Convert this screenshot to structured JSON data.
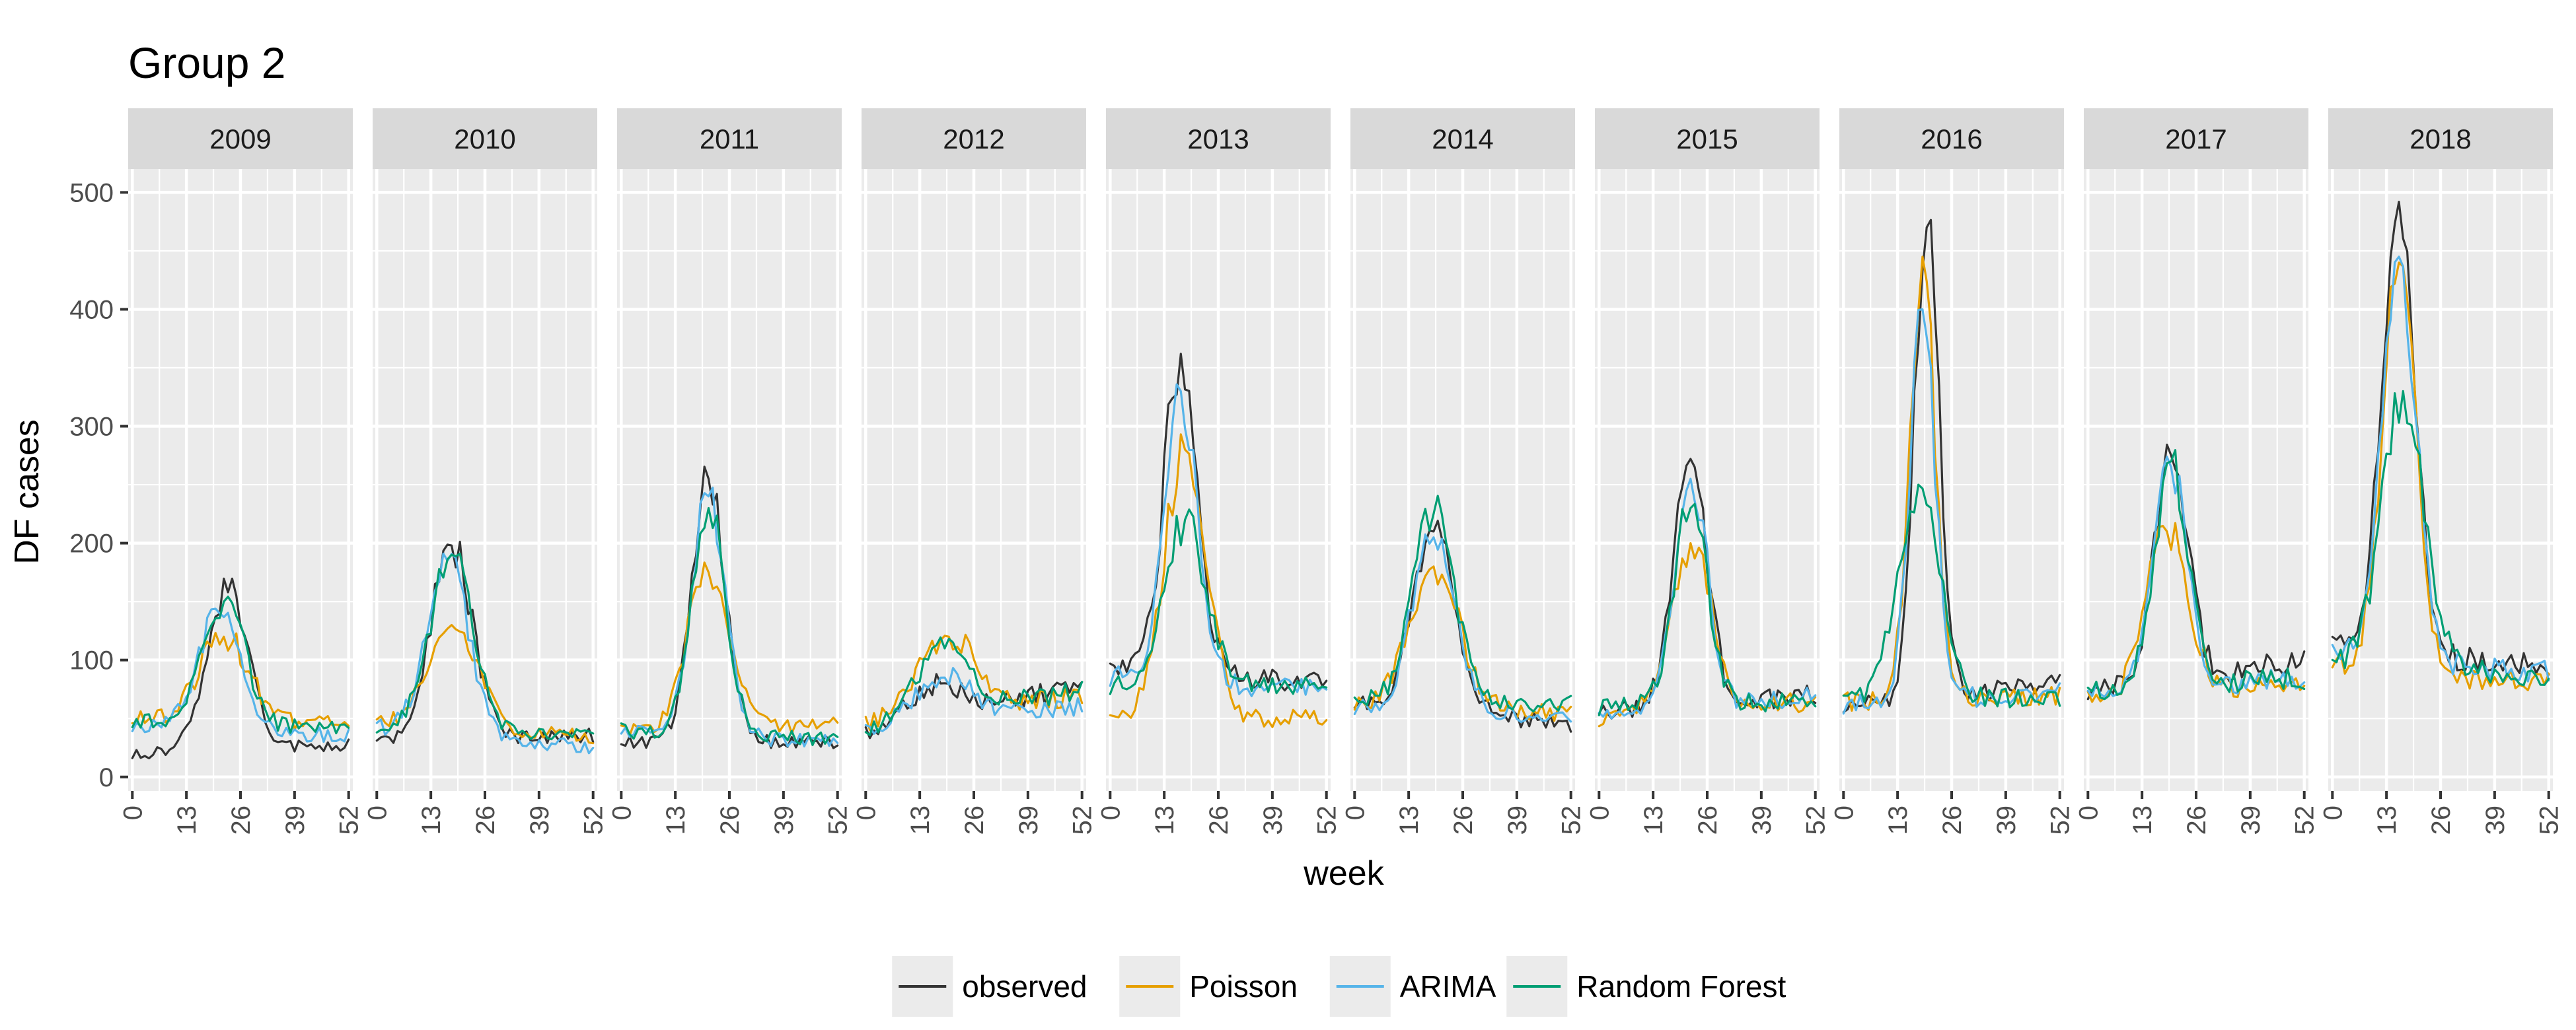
{
  "chart_data": {
    "type": "line",
    "title": "Group 2",
    "xlabel": "week",
    "ylabel": "DF cases",
    "xlim": [
      -1,
      53
    ],
    "ylim": [
      -12,
      520
    ],
    "x_ticks": [
      "0",
      "13",
      "26",
      "39",
      "52"
    ],
    "y_ticks": [
      "0",
      "100",
      "200",
      "300",
      "400",
      "500"
    ],
    "panels": [
      "2009",
      "2010",
      "2011",
      "2012",
      "2013",
      "2014",
      "2015",
      "2016",
      "2017",
      "2018"
    ],
    "legend": {
      "position": "bottom",
      "entries": [
        {
          "name": "observed",
          "color": "#333333"
        },
        {
          "name": "Poisson",
          "color": "#E69F00"
        },
        {
          "name": "ARIMA",
          "color": "#56B4E9"
        },
        {
          "name": "Random Forest",
          "color": "#009E73"
        }
      ]
    },
    "series_profiles": {
      "2009": {
        "observed": {
          "base_start": 20,
          "base_end": 28,
          "peak": 158,
          "peak_week": 23,
          "width": 5
        },
        "Poisson": {
          "base_start": 50,
          "base_end": 45,
          "peak": 120,
          "peak_week": 22,
          "width": 6
        },
        "ARIMA": {
          "base_start": 45,
          "base_end": 35,
          "peak": 140,
          "peak_week": 21,
          "width": 5
        },
        "Random Forest": {
          "base_start": 48,
          "base_end": 40,
          "peak": 150,
          "peak_week": 22,
          "width": 5
        }
      },
      "2010": {
        "observed": {
          "base_start": 32,
          "base_end": 35,
          "peak": 198,
          "peak_week": 18,
          "width": 5
        },
        "Poisson": {
          "base_start": 45,
          "base_end": 35,
          "peak": 130,
          "peak_week": 18,
          "width": 6
        },
        "ARIMA": {
          "base_start": 42,
          "base_end": 25,
          "peak": 185,
          "peak_week": 17,
          "width": 5
        },
        "Random Forest": {
          "base_start": 45,
          "base_end": 35,
          "peak": 190,
          "peak_week": 18,
          "width": 5
        }
      },
      "2011": {
        "observed": {
          "base_start": 30,
          "base_end": 30,
          "peak": 255,
          "peak_week": 21,
          "width": 4
        },
        "Poisson": {
          "base_start": 40,
          "base_end": 45,
          "peak": 175,
          "peak_week": 21,
          "width": 5
        },
        "ARIMA": {
          "base_start": 38,
          "base_end": 30,
          "peak": 240,
          "peak_week": 21,
          "width": 4
        },
        "Random Forest": {
          "base_start": 40,
          "base_end": 32,
          "peak": 230,
          "peak_week": 21,
          "width": 4
        }
      },
      "2012": {
        "observed": {
          "base_start": 35,
          "base_end": 80,
          "peak": 80,
          "peak_week": 18,
          "width": 7
        },
        "Poisson": {
          "base_start": 45,
          "base_end": 70,
          "peak": 120,
          "peak_week": 20,
          "width": 7
        },
        "ARIMA": {
          "base_start": 40,
          "base_end": 60,
          "peak": 85,
          "peak_week": 19,
          "width": 7
        },
        "Random Forest": {
          "base_start": 38,
          "base_end": 75,
          "peak": 110,
          "peak_week": 19,
          "width": 7
        }
      },
      "2013": {
        "observed": {
          "base_start": 90,
          "base_end": 80,
          "peak": 362,
          "peak_week": 17,
          "width": 4
        },
        "Poisson": {
          "base_start": 50,
          "base_end": 50,
          "peak": 280,
          "peak_week": 18,
          "width": 5
        },
        "ARIMA": {
          "base_start": 85,
          "base_end": 75,
          "peak": 330,
          "peak_week": 17,
          "width": 4
        },
        "Random Forest": {
          "base_start": 80,
          "base_end": 80,
          "peak": 220,
          "peak_week": 18,
          "width": 5
        }
      },
      "2014": {
        "observed": {
          "base_start": 65,
          "base_end": 45,
          "peak": 210,
          "peak_week": 19,
          "width": 5
        },
        "Poisson": {
          "base_start": 60,
          "base_end": 55,
          "peak": 180,
          "peak_week": 19,
          "width": 6
        },
        "ARIMA": {
          "base_start": 62,
          "base_end": 50,
          "peak": 205,
          "peak_week": 19,
          "width": 5
        },
        "Random Forest": {
          "base_start": 65,
          "base_end": 62,
          "peak": 225,
          "peak_week": 19,
          "width": 5
        }
      },
      "2015": {
        "observed": {
          "base_start": 55,
          "base_end": 70,
          "peak": 272,
          "peak_week": 22,
          "width": 4
        },
        "Poisson": {
          "base_start": 50,
          "base_end": 65,
          "peak": 200,
          "peak_week": 22,
          "width": 5
        },
        "ARIMA": {
          "base_start": 55,
          "base_end": 68,
          "peak": 255,
          "peak_week": 22,
          "width": 4
        },
        "Random Forest": {
          "base_start": 60,
          "base_end": 65,
          "peak": 230,
          "peak_week": 22,
          "width": 4
        }
      },
      "2016": {
        "observed": {
          "base_start": 60,
          "base_end": 80,
          "peak": 470,
          "peak_week": 20,
          "width": 3
        },
        "Poisson": {
          "base_start": 65,
          "base_end": 70,
          "peak": 445,
          "peak_week": 19,
          "width": 3
        },
        "ARIMA": {
          "base_start": 62,
          "base_end": 72,
          "peak": 400,
          "peak_week": 19,
          "width": 3
        },
        "Random Forest": {
          "base_start": 65,
          "base_end": 68,
          "peak": 250,
          "peak_week": 18,
          "width": 5
        }
      },
      "2017": {
        "observed": {
          "base_start": 75,
          "base_end": 100,
          "peak": 275,
          "peak_week": 20,
          "width": 4
        },
        "Poisson": {
          "base_start": 65,
          "base_end": 80,
          "peak": 210,
          "peak_week": 19,
          "width": 5
        },
        "ARIMA": {
          "base_start": 72,
          "base_end": 85,
          "peak": 265,
          "peak_week": 20,
          "width": 4
        },
        "Random Forest": {
          "base_start": 75,
          "base_end": 85,
          "peak": 270,
          "peak_week": 20,
          "width": 4
        }
      },
      "2018": {
        "observed": {
          "base_start": 110,
          "base_end": 95,
          "peak": 492,
          "peak_week": 16,
          "width": 4
        },
        "Poisson": {
          "base_start": 95,
          "base_end": 80,
          "peak": 440,
          "peak_week": 16,
          "width": 4
        },
        "ARIMA": {
          "base_start": 105,
          "base_end": 90,
          "peak": 445,
          "peak_week": 16,
          "width": 4
        },
        "Random Forest": {
          "base_start": 100,
          "base_end": 85,
          "peak": 330,
          "peak_week": 17,
          "width": 5
        }
      }
    }
  }
}
